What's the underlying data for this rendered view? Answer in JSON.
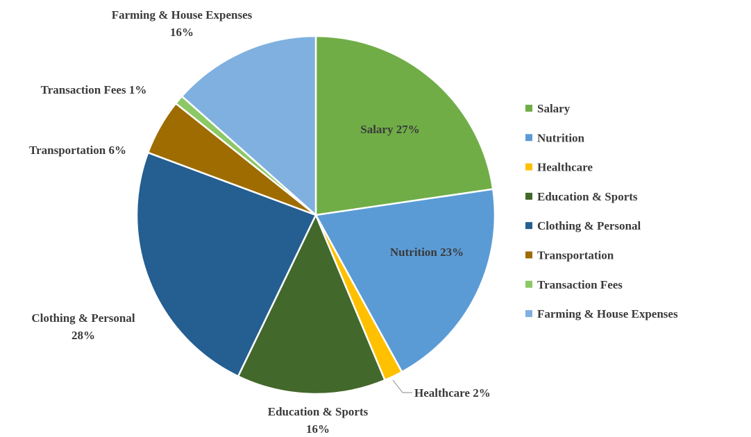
{
  "chart_data": {
    "type": "pie",
    "categories": [
      "Salary",
      "Nutrition",
      "Healthcare",
      "Education & Sports",
      "Clothing & Personal",
      "Transportation",
      "Transaction Fees",
      "Farming & House Expenses"
    ],
    "values": [
      27,
      23,
      2,
      16,
      28,
      6,
      1,
      16
    ],
    "value_labels": [
      "27%",
      "23%",
      "2%",
      "16%",
      "28%",
      "6%",
      "1%",
      "16%"
    ],
    "colors": [
      "#70ad47",
      "#5b9bd5",
      "#ffc000",
      "#43682b",
      "#255e91",
      "#9e6c00",
      "#8cc866",
      "#7fb0e0"
    ],
    "legend": "right"
  }
}
